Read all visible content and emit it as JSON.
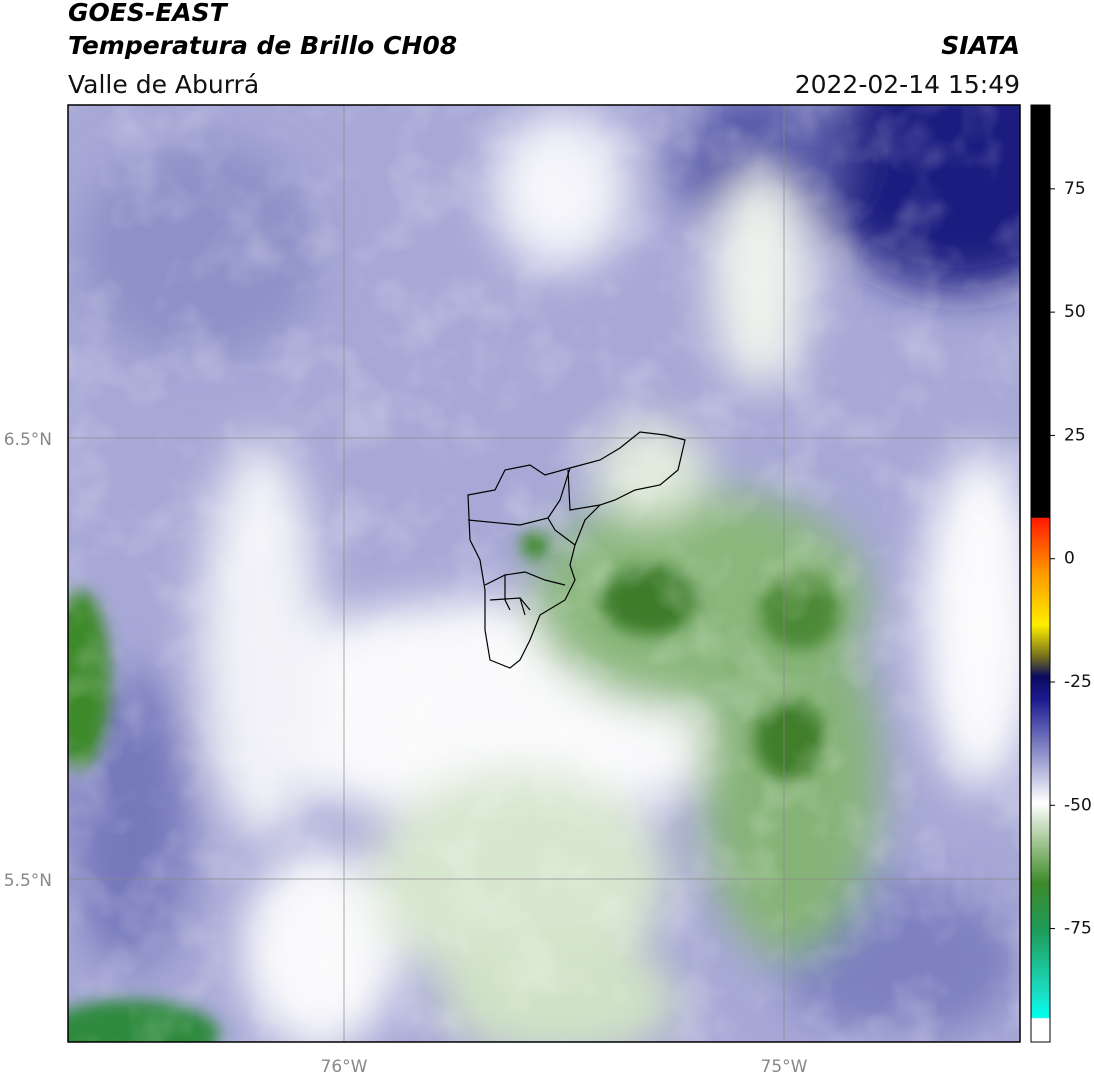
{
  "header": {
    "title": "GOES-EAST",
    "subtitle": "Temperatura de Brillo CH08",
    "region": "Valle de Aburrá",
    "source": "SIATA",
    "datetime": "2022-02-14 15:49"
  },
  "map": {
    "lat_labels": [
      "6.5°N",
      "5.5°N"
    ],
    "lon_labels": [
      "76°W",
      "75°W"
    ]
  },
  "colorbar": {
    "lim": [
      -98,
      92
    ],
    "ticks": [
      75,
      50,
      25,
      0,
      -25,
      -50,
      -75
    ]
  }
}
